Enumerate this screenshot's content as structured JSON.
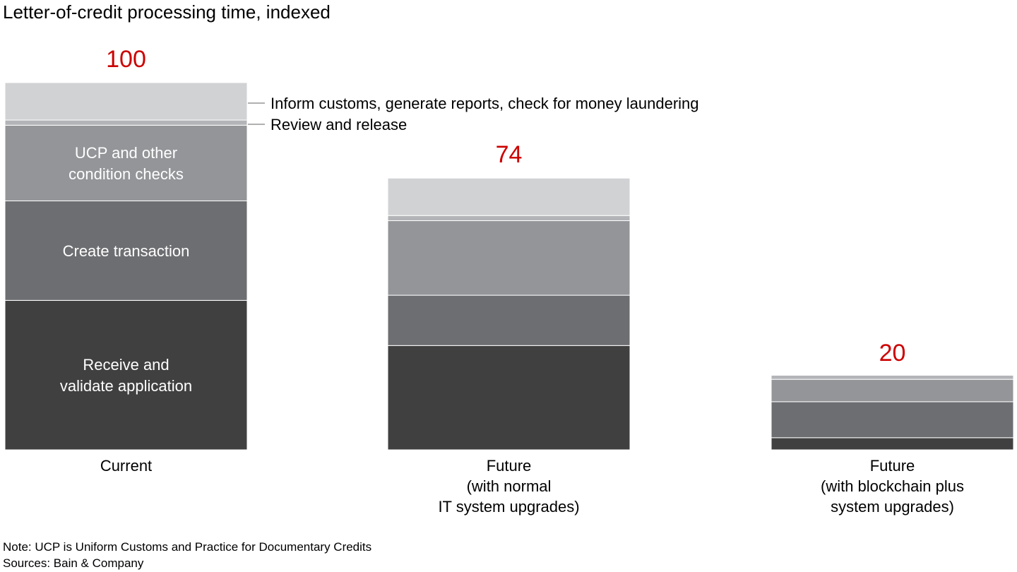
{
  "chart_data": {
    "type": "bar",
    "stacked": true,
    "title": "Letter-of-credit processing time, indexed",
    "categories": [
      [
        "Current"
      ],
      [
        "Future",
        "(with normal",
        "IT system upgrades)"
      ],
      [
        "Future",
        "(with blockchain plus",
        "system upgrades)"
      ]
    ],
    "totals": [
      100,
      74,
      20
    ],
    "ylim": [
      0,
      100
    ],
    "grid": false,
    "series": [
      {
        "name": [
          "Receive and",
          "validate application"
        ],
        "color": "#404040",
        "values": [
          40.7,
          28.4,
          3.3
        ]
      },
      {
        "name": [
          "Create transaction"
        ],
        "color": "#6d6e71",
        "values": [
          27.1,
          13.7,
          9.8
        ]
      },
      {
        "name": [
          "UCP and other",
          "condition checks"
        ],
        "color": "#939598",
        "values": [
          20.6,
          20.3,
          6.1
        ]
      },
      {
        "name": [
          "Review and release"
        ],
        "color": "#b3b4b7",
        "values": [
          1.4,
          1.4,
          1.1
        ]
      },
      {
        "name": [
          "Inform customs, generate reports, check for money laundering"
        ],
        "color": "#d1d2d4",
        "values": [
          10.2,
          10.2,
          0
        ]
      }
    ],
    "total_label_color": "#cc0000"
  },
  "footer": {
    "note": "Note: UCP is Uniform Customs and Practice for Documentary Credits",
    "sources": "Sources: Bain & Company"
  }
}
